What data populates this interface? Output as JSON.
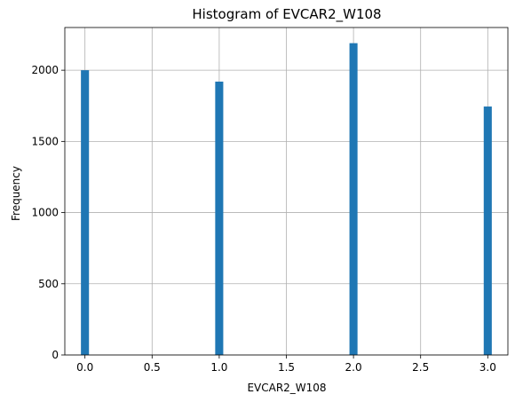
{
  "chart_data": {
    "type": "bar",
    "title": "Histogram of EVCAR2_W108",
    "xlabel": "EVCAR2_W108",
    "ylabel": "Frequency",
    "bars": [
      {
        "x": 0.0,
        "value": 2000
      },
      {
        "x": 1.0,
        "value": 1920
      },
      {
        "x": 2.0,
        "value": 2190
      },
      {
        "x": 3.0,
        "value": 1745
      }
    ],
    "bin_width": 0.06,
    "xlim": [
      -0.15,
      3.15
    ],
    "ylim": [
      0,
      2300
    ],
    "xticks": [
      {
        "value": 0.0,
        "label": "0.0"
      },
      {
        "value": 0.5,
        "label": "0.5"
      },
      {
        "value": 1.0,
        "label": "1.0"
      },
      {
        "value": 1.5,
        "label": "1.5"
      },
      {
        "value": 2.0,
        "label": "2.0"
      },
      {
        "value": 2.5,
        "label": "2.5"
      },
      {
        "value": 3.0,
        "label": "3.0"
      }
    ],
    "yticks": [
      {
        "value": 0,
        "label": "0"
      },
      {
        "value": 500,
        "label": "500"
      },
      {
        "value": 1000,
        "label": "1000"
      },
      {
        "value": 1500,
        "label": "1500"
      },
      {
        "value": 2000,
        "label": "2000"
      }
    ],
    "grid": true,
    "bar_color": "#1f77b4"
  }
}
